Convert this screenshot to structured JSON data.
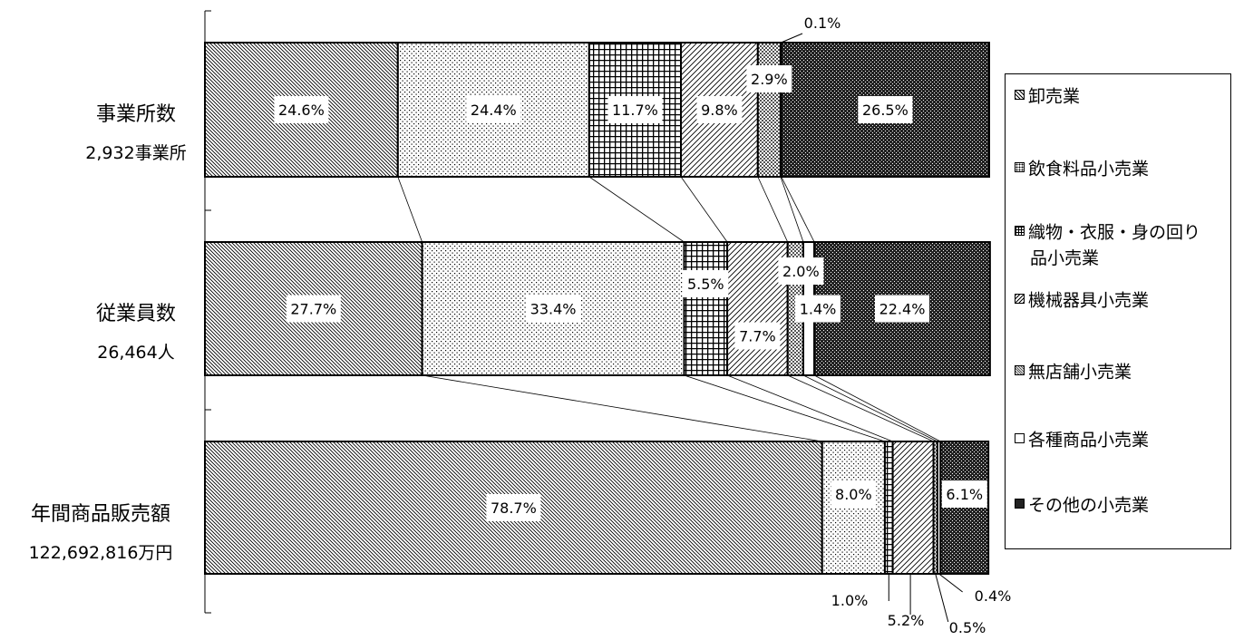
{
  "chart_data": {
    "type": "bar",
    "orientation": "horizontal",
    "stacked": "100%",
    "categories": [
      {
        "label": "事業所数",
        "sub": "2,932事業所"
      },
      {
        "label": "従業員数",
        "sub": "26,464人"
      },
      {
        "label": "年間商品販売額",
        "sub": "122,692,816万円"
      }
    ],
    "series": [
      {
        "name": "卸売業",
        "values": [
          24.6,
          27.7,
          78.7
        ],
        "labels": [
          "24.6%",
          "27.7%",
          "78.7%"
        ],
        "pattern": "diag-fine"
      },
      {
        "name": "飲食料品小売業",
        "values": [
          24.4,
          33.4,
          8.0
        ],
        "labels": [
          "24.4%",
          "33.4%",
          "8.0%"
        ],
        "pattern": "dots"
      },
      {
        "name": "織物・衣服・身の回り品小売業",
        "values": [
          11.7,
          5.5,
          1.0
        ],
        "labels": [
          "11.7%",
          "5.5%",
          "1.0%"
        ],
        "pattern": "grid"
      },
      {
        "name": "機械器具小売業",
        "values": [
          9.8,
          7.7,
          5.2
        ],
        "labels": [
          "9.8%",
          "7.7%",
          "5.2%"
        ],
        "pattern": "diag-wide"
      },
      {
        "name": "無店舗小売業",
        "values": [
          2.9,
          2.0,
          0.5
        ],
        "labels": [
          "2.9%",
          "2.0%",
          "0.5%"
        ],
        "pattern": "checker"
      },
      {
        "name": "各種商品小売業",
        "values": [
          0.1,
          1.4,
          0.4
        ],
        "labels": [
          "0.1%",
          "1.4%",
          "0.4%"
        ],
        "pattern": "plain"
      },
      {
        "name": "その他の小売業",
        "values": [
          26.5,
          22.4,
          6.1
        ],
        "labels": [
          "26.5%",
          "22.4%",
          "6.1%"
        ],
        "pattern": "dark"
      }
    ],
    "xlim": [
      0,
      100
    ],
    "legend": {
      "position": "right",
      "lines": [
        [
          "卸売業"
        ],
        [
          "飲食料品小売業"
        ],
        [
          "織物・衣服・身の回り",
          "品小売業"
        ],
        [
          "機械器具小売業"
        ],
        [
          "無店舗小売業"
        ],
        [
          "各種商品小売業"
        ],
        [
          "その他の小売業"
        ]
      ]
    },
    "series_lines": true,
    "grid": false
  }
}
